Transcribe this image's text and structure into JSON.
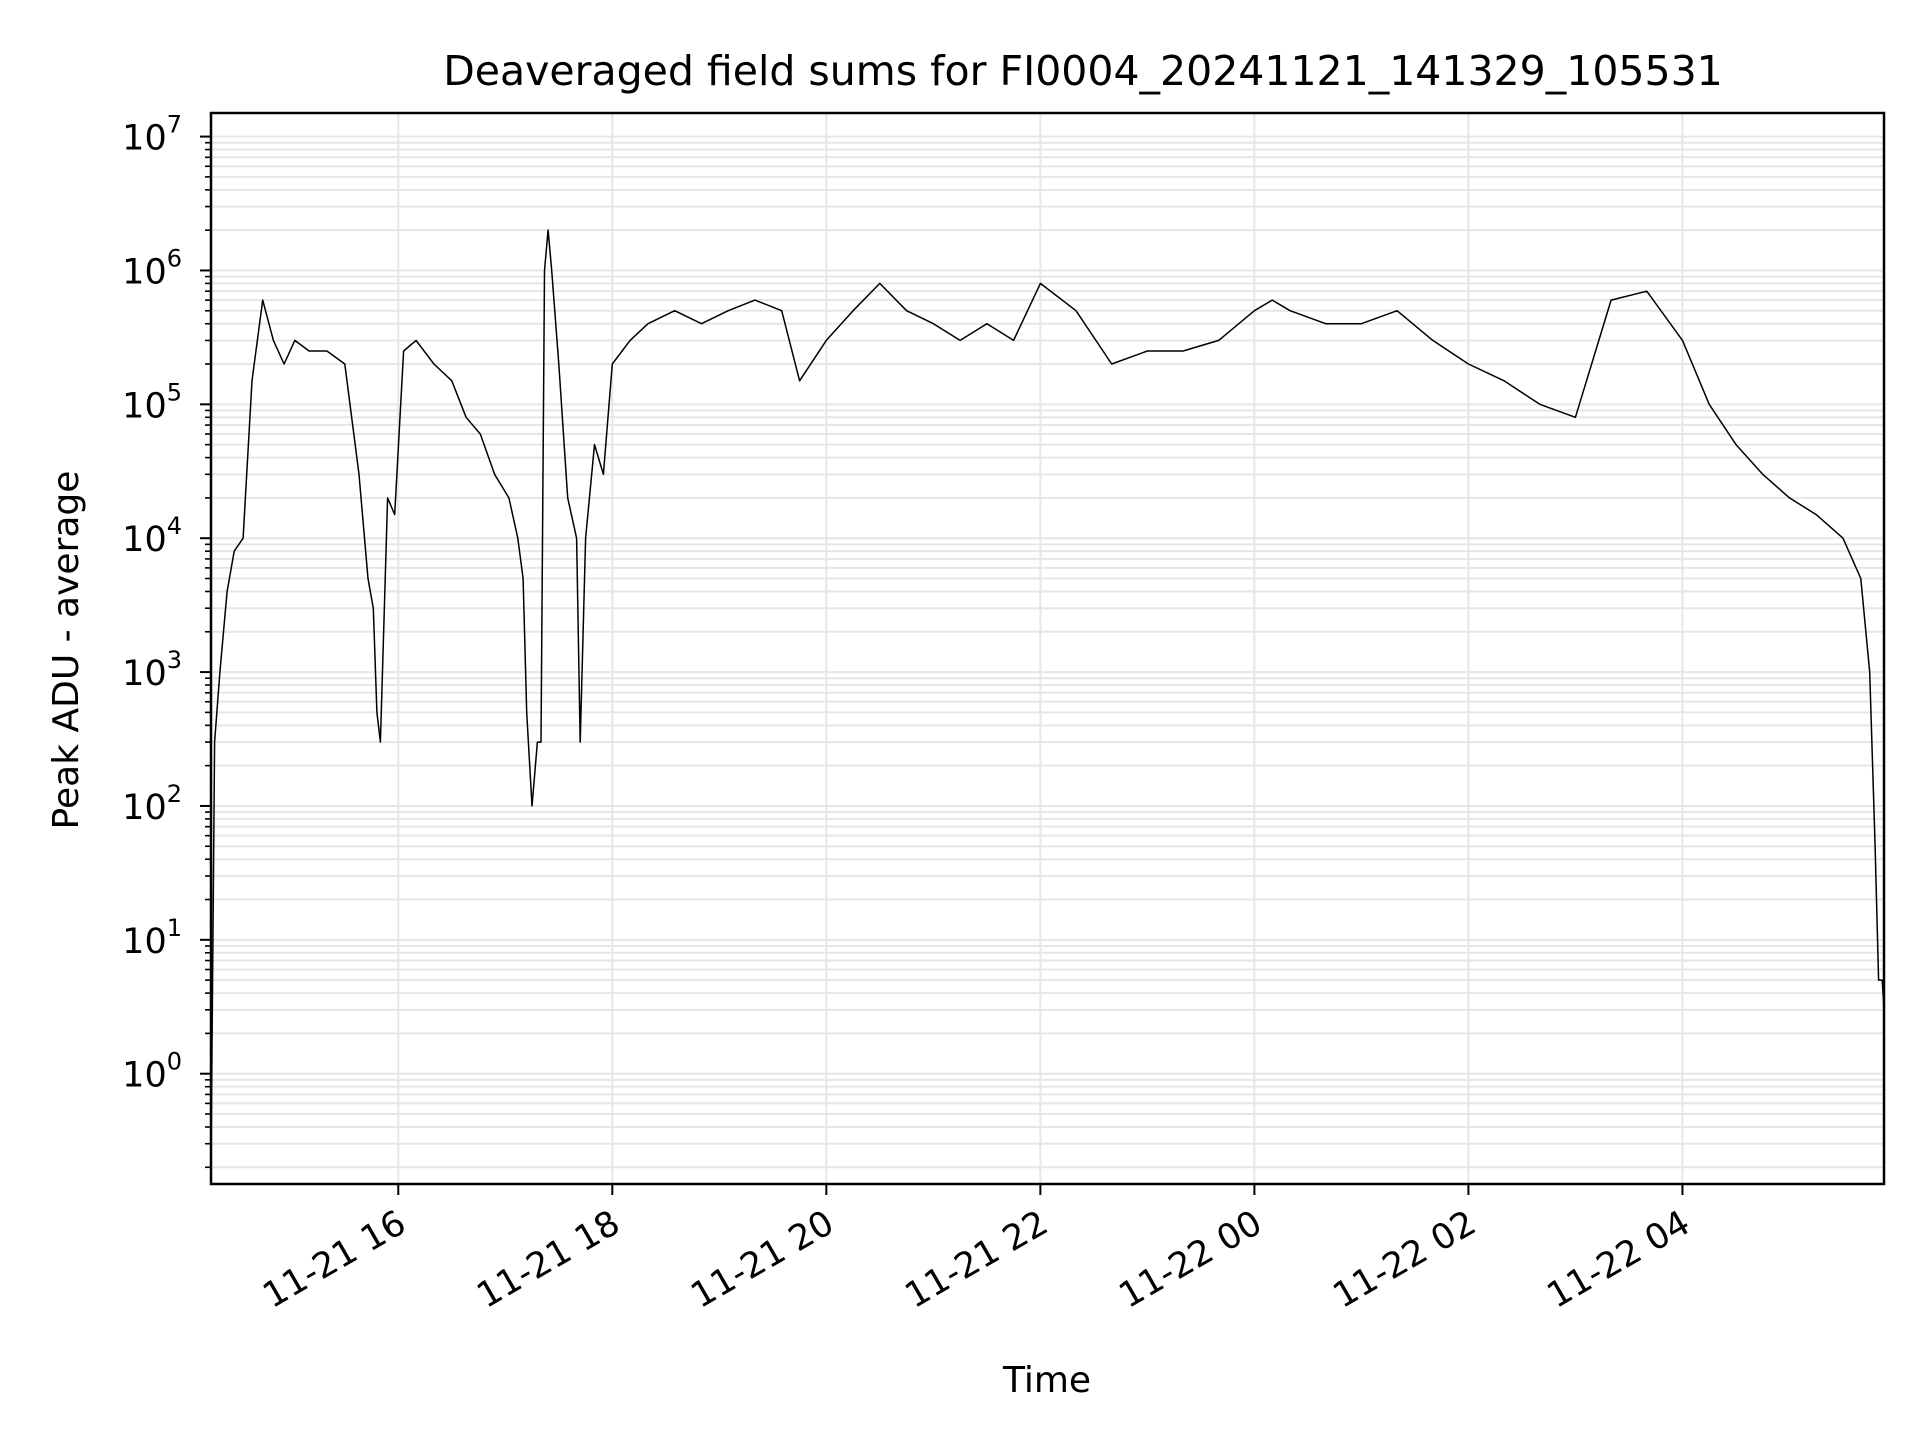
{
  "chart_data": {
    "type": "line",
    "title": "Deaveraged field sums for FI0004_20241121_141329_105531",
    "xlabel": "Time",
    "ylabel": "Peak ADU - average",
    "yscale": "log",
    "ylim": [
      0.15,
      15000000
    ],
    "xlim": [
      "2024-11-21 14:15",
      "2024-11-22 05:53"
    ],
    "grid": true,
    "x_ticks": [
      {
        "value": "2024-11-21 16:00",
        "label": "11-21 16"
      },
      {
        "value": "2024-11-21 18:00",
        "label": "11-21 18"
      },
      {
        "value": "2024-11-21 20:00",
        "label": "11-21 20"
      },
      {
        "value": "2024-11-21 22:00",
        "label": "11-21 22"
      },
      {
        "value": "2024-11-22 00:00",
        "label": "11-22 00"
      },
      {
        "value": "2024-11-22 02:00",
        "label": "11-22 02"
      },
      {
        "value": "2024-11-22 04:00",
        "label": "11-22 04"
      }
    ],
    "y_ticks": [
      {
        "value": 1,
        "base": "10",
        "exp": "0"
      },
      {
        "value": 10,
        "base": "10",
        "exp": "1"
      },
      {
        "value": 100,
        "base": "10",
        "exp": "2"
      },
      {
        "value": 1000,
        "base": "10",
        "exp": "3"
      },
      {
        "value": 10000,
        "base": "10",
        "exp": "4"
      },
      {
        "value": 100000,
        "base": "10",
        "exp": "5"
      },
      {
        "value": 1000000,
        "base": "10",
        "exp": "6"
      },
      {
        "value": 10000000,
        "base": "10",
        "exp": "7"
      }
    ],
    "line_color": "#000000",
    "grid_color": "#e6e6e6",
    "series": [
      {
        "x": [
          "2024-11-21 14:15",
          "2024-11-21 14:17",
          "2024-11-21 14:20",
          "2024-11-21 14:24",
          "2024-11-21 14:28",
          "2024-11-21 14:33",
          "2024-11-21 14:38",
          "2024-11-21 14:44",
          "2024-11-21 14:50",
          "2024-11-21 14:56",
          "2024-11-21 15:02",
          "2024-11-21 15:10",
          "2024-11-21 15:20",
          "2024-11-21 15:30",
          "2024-11-21 15:38",
          "2024-11-21 15:43",
          "2024-11-21 15:46",
          "2024-11-21 15:48",
          "2024-11-21 15:50",
          "2024-11-21 15:54",
          "2024-11-21 15:58",
          "2024-11-21 16:03",
          "2024-11-21 16:10",
          "2024-11-21 16:20",
          "2024-11-21 16:30",
          "2024-11-21 16:38",
          "2024-11-21 16:46",
          "2024-11-21 16:54",
          "2024-11-21 17:02",
          "2024-11-21 17:07",
          "2024-11-21 17:10",
          "2024-11-21 17:12",
          "2024-11-21 17:15",
          "2024-11-21 17:18",
          "2024-11-21 17:20",
          "2024-11-21 17:22",
          "2024-11-21 17:24",
          "2024-11-21 17:26",
          "2024-11-21 17:30",
          "2024-11-21 17:35",
          "2024-11-21 17:40",
          "2024-11-21 17:42",
          "2024-11-21 17:45",
          "2024-11-21 17:50",
          "2024-11-21 17:55",
          "2024-11-21 18:00",
          "2024-11-21 18:10",
          "2024-11-21 18:20",
          "2024-11-21 18:35",
          "2024-11-21 18:50",
          "2024-11-21 19:05",
          "2024-11-21 19:20",
          "2024-11-21 19:35",
          "2024-11-21 19:45",
          "2024-11-21 20:00",
          "2024-11-21 20:15",
          "2024-11-21 20:30",
          "2024-11-21 20:45",
          "2024-11-21 21:00",
          "2024-11-21 21:15",
          "2024-11-21 21:30",
          "2024-11-21 21:45",
          "2024-11-21 22:00",
          "2024-11-21 22:20",
          "2024-11-21 22:40",
          "2024-11-21 23:00",
          "2024-11-21 23:20",
          "2024-11-21 23:40",
          "2024-11-22 00:00",
          "2024-11-22 00:10",
          "2024-11-22 00:20",
          "2024-11-22 00:40",
          "2024-11-22 01:00",
          "2024-11-22 01:20",
          "2024-11-22 01:40",
          "2024-11-22 02:00",
          "2024-11-22 02:20",
          "2024-11-22 02:40",
          "2024-11-22 03:00",
          "2024-11-22 03:20",
          "2024-11-22 03:40",
          "2024-11-22 04:00",
          "2024-11-22 04:15",
          "2024-11-22 04:30",
          "2024-11-22 04:45",
          "2024-11-22 05:00",
          "2024-11-22 05:15",
          "2024-11-22 05:30",
          "2024-11-22 05:40",
          "2024-11-22 05:45",
          "2024-11-22 05:48",
          "2024-11-22 05:50",
          "2024-11-22 05:52",
          "2024-11-22 05:53"
        ],
        "y": [
          0.2,
          300,
          1000,
          4000,
          8000,
          10000,
          150000,
          600000,
          300000,
          200000,
          300000,
          250000,
          250000,
          200000,
          30000,
          5000,
          3000,
          500,
          300,
          20000,
          15000,
          250000,
          300000,
          200000,
          150000,
          80000,
          60000,
          30000,
          20000,
          10000,
          5000,
          500,
          100,
          300,
          300,
          1000000,
          2000000,
          1000000,
          200000,
          20000,
          10000,
          300,
          10000,
          50000,
          30000,
          200000,
          300000,
          400000,
          500000,
          400000,
          500000,
          600000,
          500000,
          150000,
          300000,
          500000,
          800000,
          500000,
          400000,
          300000,
          400000,
          300000,
          800000,
          500000,
          200000,
          250000,
          250000,
          300000,
          500000,
          600000,
          500000,
          400000,
          400000,
          500000,
          300000,
          200000,
          150000,
          100000,
          80000,
          600000,
          700000,
          300000,
          100000,
          50000,
          30000,
          20000,
          15000,
          10000,
          5000,
          1000,
          50,
          5,
          5,
          3
        ]
      }
    ]
  }
}
